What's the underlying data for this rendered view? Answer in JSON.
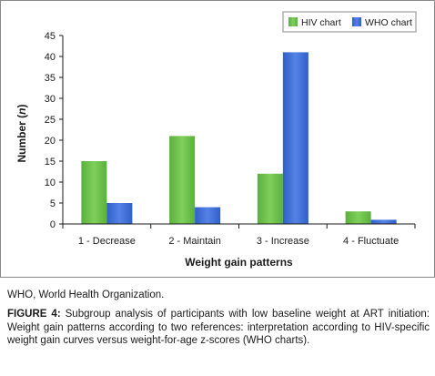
{
  "chart_data": {
    "type": "bar",
    "title": "",
    "xlabel": "Weight gain patterns",
    "ylabel": "Number",
    "ylabel_italic": "n",
    "ylim": [
      0,
      45
    ],
    "yticks": [
      0,
      5,
      10,
      15,
      20,
      25,
      30,
      35,
      40,
      45
    ],
    "grid": false,
    "legend_position": "top-right",
    "categories": [
      "1 - Decrease",
      "2 - Maintain",
      "3 - Increase",
      "4 - Fluctuate"
    ],
    "series": [
      {
        "name": "HIV chart",
        "values": [
          15,
          21,
          12,
          3
        ],
        "color": "#6cc04a"
      },
      {
        "name": "WHO chart",
        "values": [
          5,
          4,
          41,
          1
        ],
        "color": "#3f6fd8"
      }
    ]
  },
  "footnote": "WHO, World Health Organization.",
  "caption": {
    "label": "FIGURE 4:",
    "text": "Subgroup analysis of participants with low baseline weight at ART initiation: Weight gain patterns according to two references: interpretation according to HIV-specific weight gain curves versus weight-for-age z-scores (WHO charts)."
  }
}
